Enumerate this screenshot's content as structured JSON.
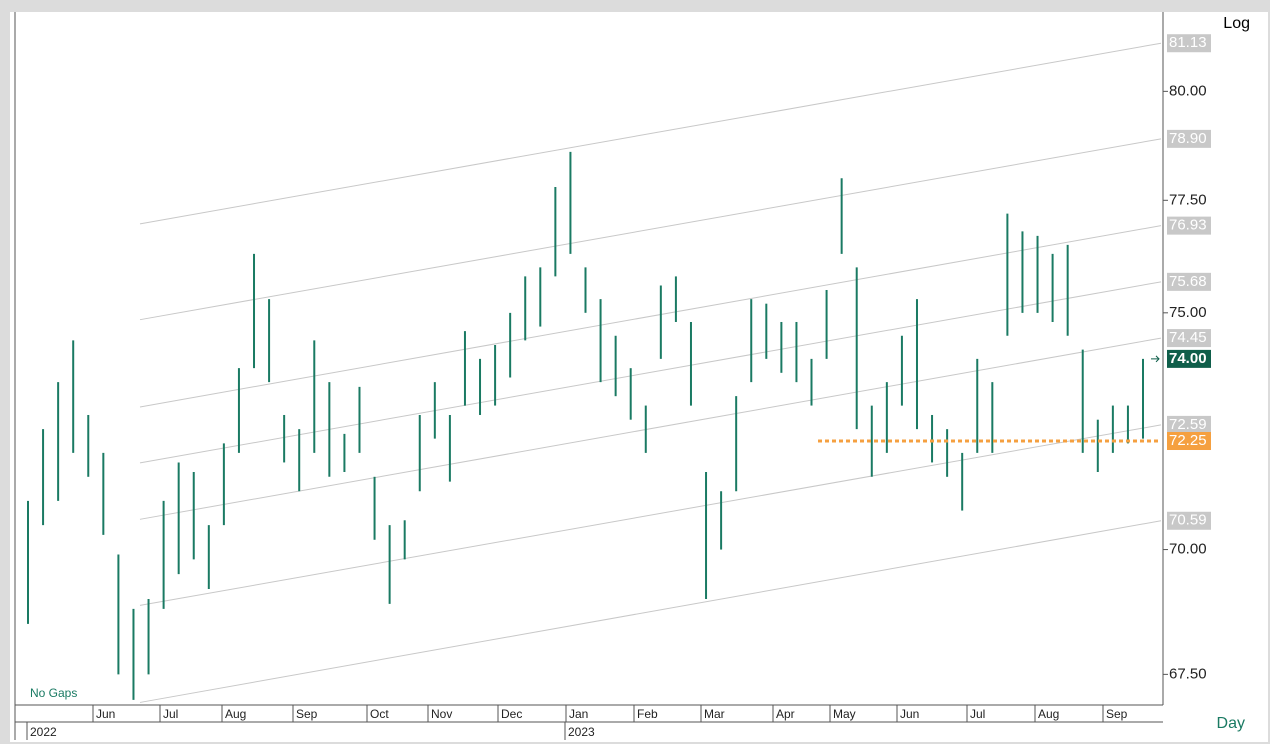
{
  "chart_data": {
    "type": "ohlc",
    "log_scale": true,
    "scale_label": "Log",
    "period_label": "Day",
    "gaps_label": "No Gaps",
    "ylim": [
      66.9,
      81.8
    ],
    "yticks": [
      {
        "value": 67.5,
        "label": "67.50"
      },
      {
        "value": 70,
        "label": "70.00"
      },
      {
        "value": 75,
        "label": "75.00"
      },
      {
        "value": 77.5,
        "label": "77.50"
      },
      {
        "value": 80,
        "label": "80.00"
      }
    ],
    "months": [
      "Jun",
      "Jul",
      "Aug",
      "Sep",
      "Oct",
      "Nov",
      "Dec",
      "Jan",
      "Feb",
      "Mar",
      "Apr",
      "May",
      "Jun",
      "Jul",
      "Aug",
      "Sep"
    ],
    "years": [
      "2022",
      "2023"
    ],
    "color": "#1a7a63",
    "bars": {
      "low": [
        68.5,
        70.5,
        71.0,
        72.0,
        71.5,
        70.3,
        67.5,
        67.0,
        67.5,
        68.8,
        69.5,
        69.8,
        69.2,
        70.5,
        72.0,
        73.8,
        73.5,
        71.8,
        71.2,
        72.0,
        71.5,
        71.6,
        72.0,
        70.2,
        68.9,
        69.8,
        71.2,
        72.3,
        71.4,
        73.0,
        72.8,
        73.0,
        73.6,
        74.4,
        74.7,
        75.8,
        76.3,
        75.0,
        73.5,
        73.2,
        72.7,
        72.0,
        74.0,
        74.8,
        73.0,
        69.0,
        70.0,
        71.2,
        73.5,
        74.0,
        73.7,
        73.5,
        73.0,
        74.0,
        76.3,
        72.5,
        71.5,
        72.0,
        73.0,
        72.5,
        71.8,
        71.5,
        70.8,
        72.0,
        72.0,
        74.5,
        75.0,
        75.0,
        74.8,
        74.5,
        72.0,
        71.6,
        72.0,
        72.2,
        72.3
      ],
      "high": [
        71.0,
        72.5,
        73.5,
        74.4,
        72.8,
        72.0,
        69.9,
        68.8,
        69.0,
        71.0,
        71.8,
        71.6,
        70.5,
        72.2,
        73.8,
        76.3,
        75.3,
        72.8,
        72.5,
        74.4,
        73.5,
        72.4,
        73.4,
        71.5,
        70.5,
        70.6,
        72.8,
        73.5,
        72.8,
        74.6,
        74.0,
        74.3,
        75.0,
        75.8,
        76.0,
        77.8,
        78.6,
        76.0,
        75.3,
        74.5,
        73.8,
        73.0,
        75.6,
        75.8,
        74.8,
        71.6,
        71.2,
        73.2,
        75.3,
        75.2,
        74.8,
        74.8,
        74.0,
        75.5,
        78.0,
        76.0,
        73.0,
        73.5,
        74.5,
        75.3,
        72.8,
        72.5,
        72.0,
        74.0,
        73.5,
        77.2,
        76.8,
        76.7,
        76.3,
        76.5,
        74.2,
        72.7,
        73.0,
        73.0,
        74.0
      ]
    },
    "channel_lines": {
      "color": "#c8c8c8",
      "start_values": [
        76.97,
        74.85,
        72.97,
        71.79,
        70.62,
        68.87,
        66.95
      ],
      "end_values": [
        81.13,
        78.9,
        76.93,
        75.68,
        74.45,
        72.59,
        70.59
      ],
      "end_labels": [
        "81.13",
        "78.90",
        "76.93",
        "75.68",
        "74.45",
        "72.59",
        "70.59"
      ]
    },
    "last_price": {
      "value": 74,
      "label": "74.00",
      "color": "#0f5e4a"
    },
    "support_line": {
      "value": 72.25,
      "label": "72.25",
      "color": "#f5a040"
    }
  }
}
